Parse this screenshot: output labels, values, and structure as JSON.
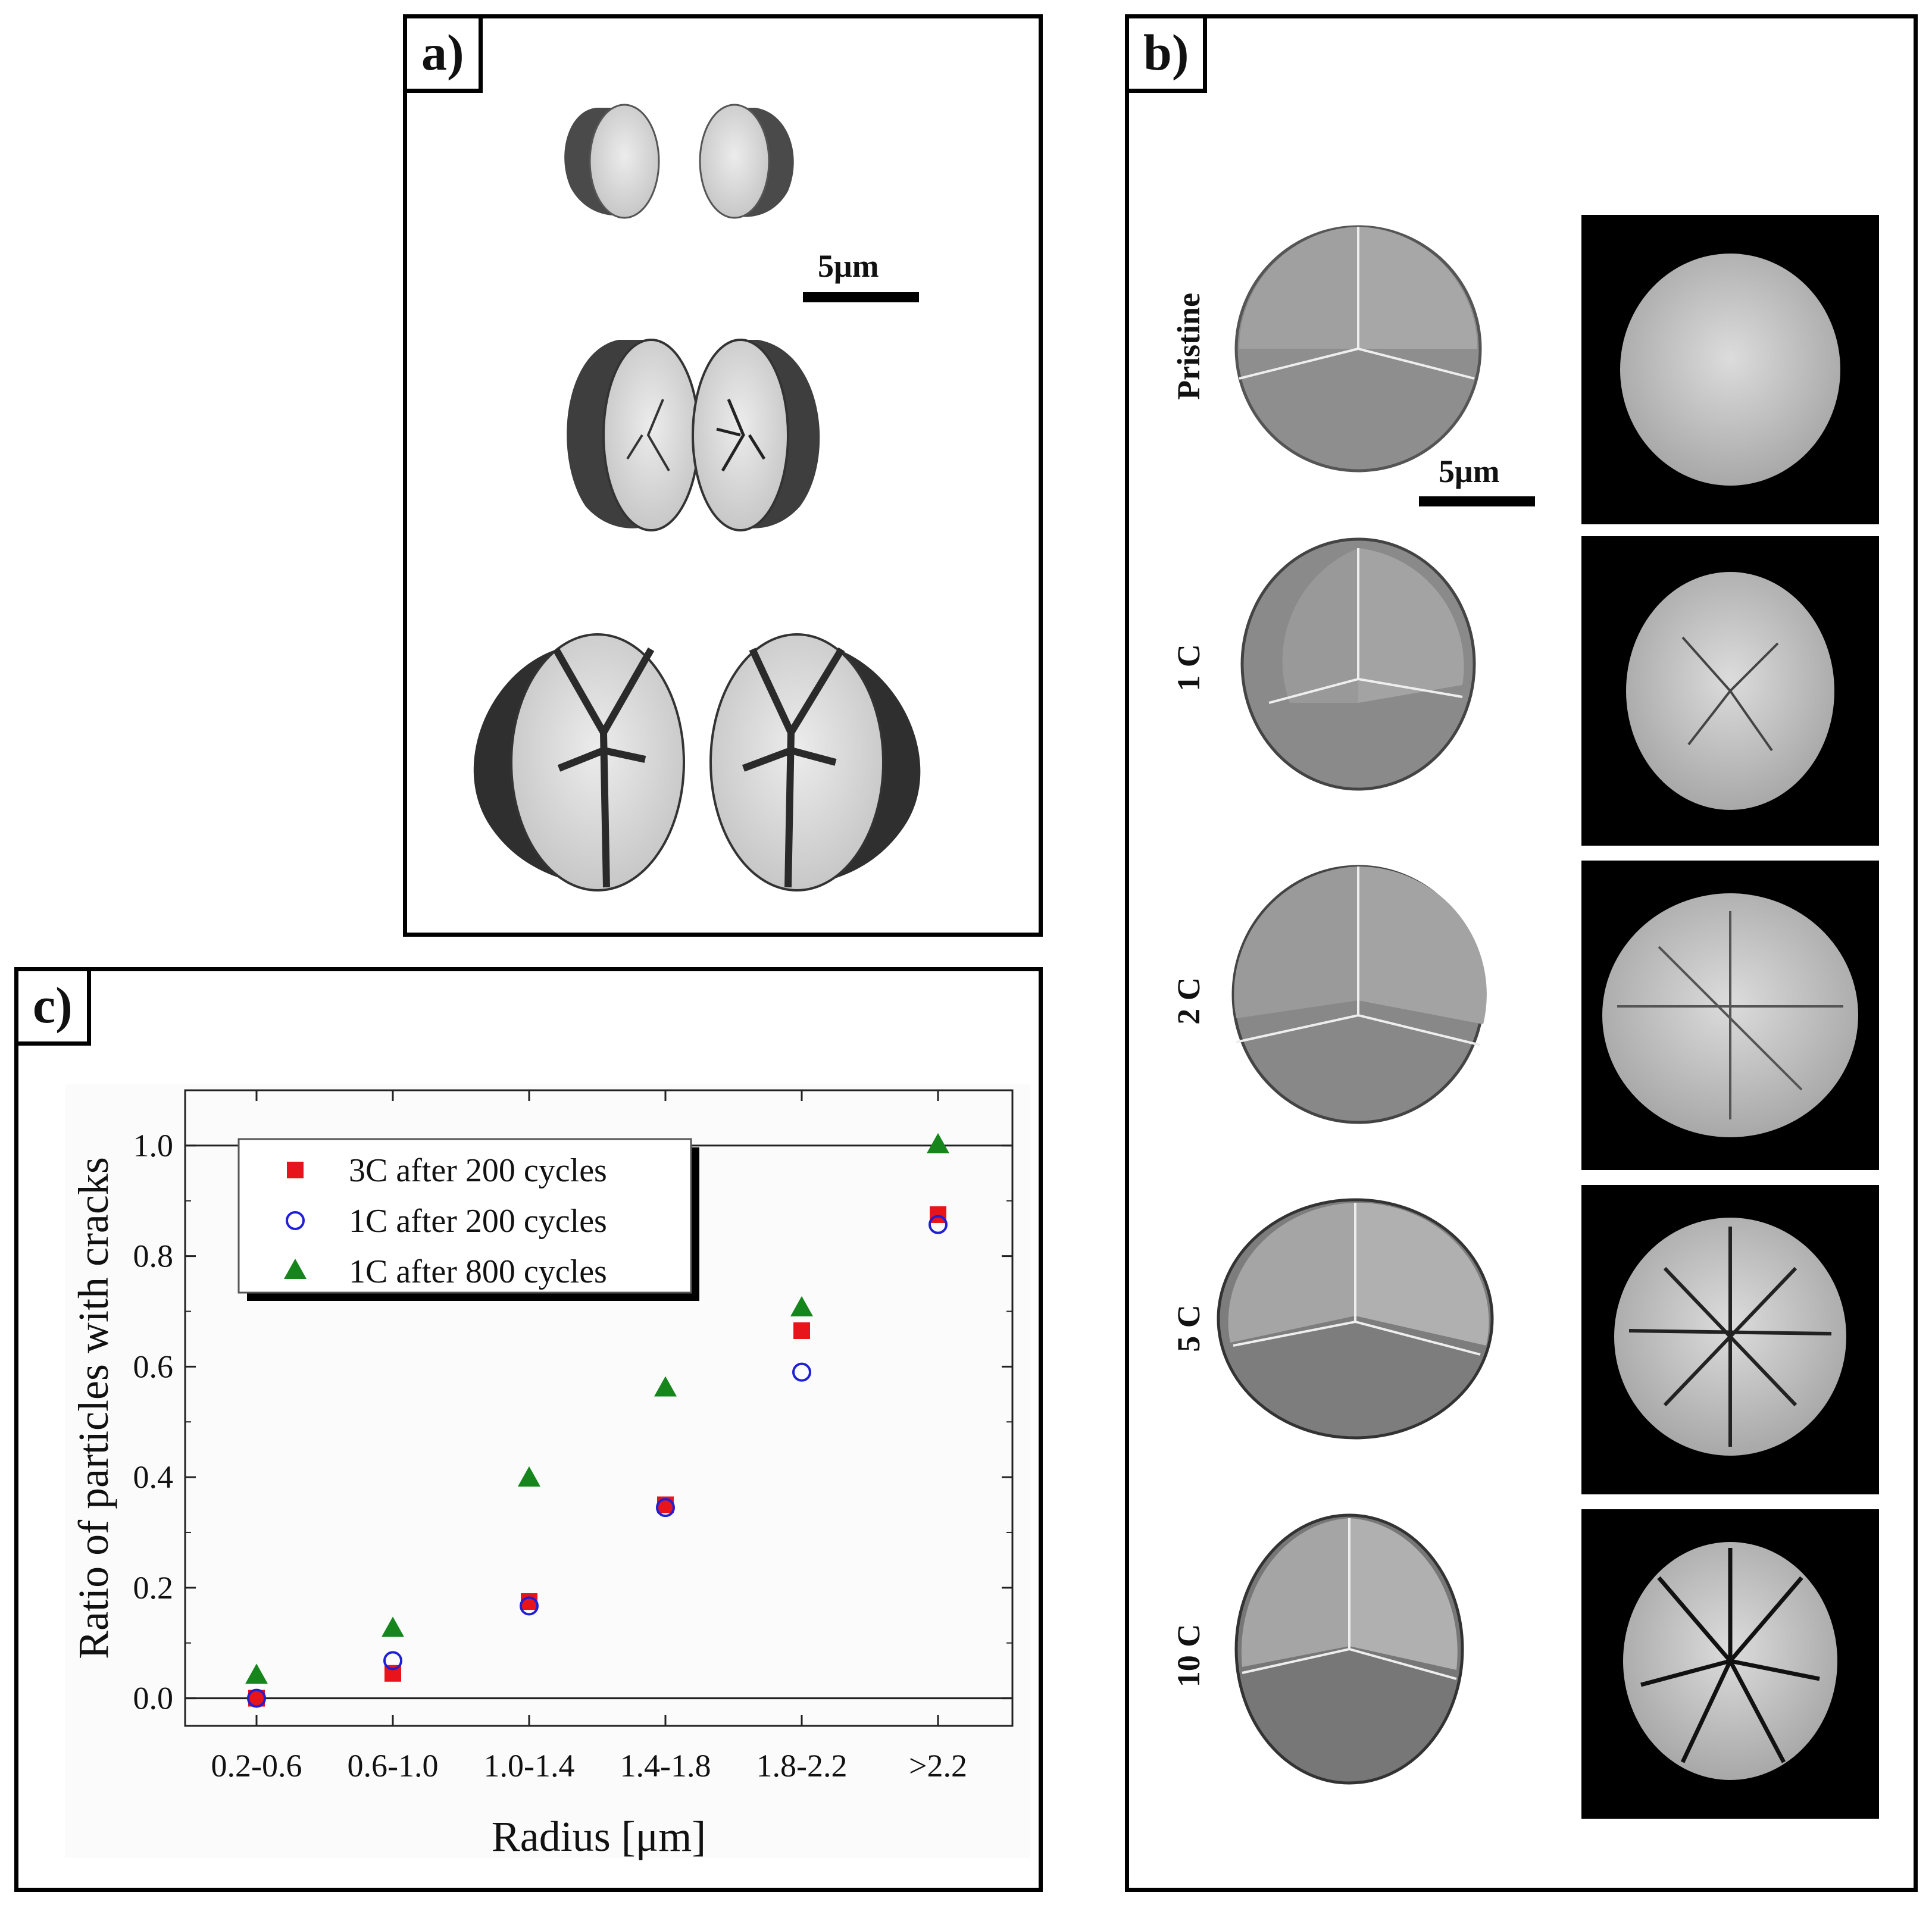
{
  "panel_a": {
    "tag": "a)",
    "scalebar_label": "5μm"
  },
  "panel_b": {
    "tag": "b)",
    "scalebar_label": "5μm",
    "rows": [
      {
        "label": "Pristine"
      },
      {
        "label": "1 C"
      },
      {
        "label": "2 C"
      },
      {
        "label": "5 C"
      },
      {
        "label": "10 C"
      }
    ]
  },
  "panel_c": {
    "tag": "c)"
  },
  "chart_data": {
    "type": "scatter",
    "xlabel": "Radius [μm]",
    "ylabel": "Ratio of particles with cracks",
    "categories": [
      "0.2-0.6",
      "0.6-1.0",
      "1.0-1.4",
      "1.4-1.8",
      "1.8-2.2",
      ">2.2"
    ],
    "ylim": [
      -0.05,
      1.1
    ],
    "yticks": [
      "0.0",
      "0.2",
      "0.4",
      "0.6",
      "0.8",
      "1.0"
    ],
    "legend_position": "top-left",
    "series": [
      {
        "name": "3C after 200 cycles",
        "marker": "square",
        "color": "#e8141b",
        "values": [
          0.0,
          0.045,
          0.175,
          0.35,
          0.665,
          0.875
        ]
      },
      {
        "name": "1C after 200 cycles",
        "marker": "open-circle",
        "color": "#1f1fd6",
        "values": [
          0.0,
          0.068,
          0.167,
          0.345,
          0.59,
          0.857
        ]
      },
      {
        "name": "1C after 800 cycles",
        "marker": "triangle",
        "color": "#16851b",
        "values": [
          0.04,
          0.125,
          0.397,
          0.56,
          0.705,
          1.0
        ]
      }
    ]
  }
}
